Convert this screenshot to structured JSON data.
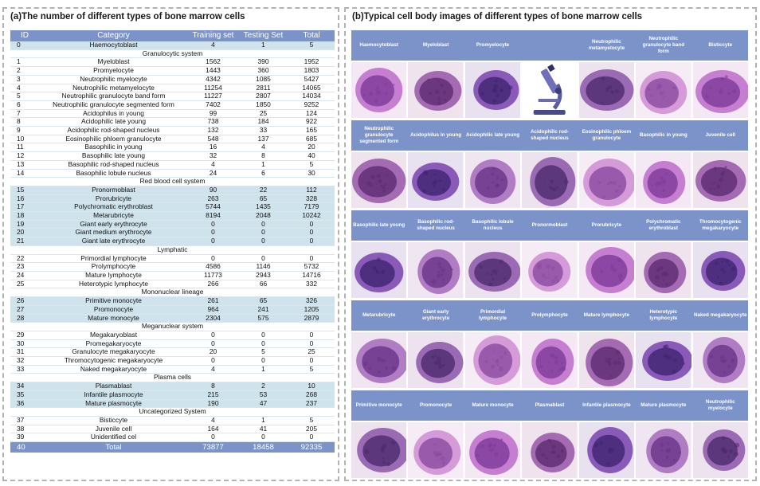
{
  "panel_a": {
    "title": "(a)The number of different types of bone marrow cells",
    "headers": [
      "ID",
      "Category",
      "Training set",
      "Testing Set",
      "Total"
    ],
    "rows": [
      {
        "kind": "row",
        "id": "0",
        "name": "Haemocytoblast",
        "train": "4",
        "test": "1",
        "total": "5",
        "hl": true
      },
      {
        "kind": "section",
        "name": "Granulocytic system"
      },
      {
        "kind": "row",
        "id": "1",
        "name": "Myeloblast",
        "train": "1562",
        "test": "390",
        "total": "1952"
      },
      {
        "kind": "row",
        "id": "2",
        "name": "Promyelocyte",
        "train": "1443",
        "test": "360",
        "total": "1803"
      },
      {
        "kind": "row",
        "id": "3",
        "name": "Neutrophilic myelocyte",
        "train": "4342",
        "test": "1085",
        "total": "5427"
      },
      {
        "kind": "row",
        "id": "4",
        "name": "Neutrophilic metamyelocyte",
        "train": "11254",
        "test": "2811",
        "total": "14065"
      },
      {
        "kind": "row",
        "id": "5",
        "name": "Neutrophilic granulocyte band form",
        "train": "11227",
        "test": "2807",
        "total": "14034"
      },
      {
        "kind": "row",
        "id": "6",
        "name": "Neutrophilic granulocyte segmented form",
        "train": "7402",
        "test": "1850",
        "total": "9252"
      },
      {
        "kind": "row",
        "id": "7",
        "name": "Acidophilus in young",
        "train": "99",
        "test": "25",
        "total": "124"
      },
      {
        "kind": "row",
        "id": "8",
        "name": "Acidophilic late young",
        "train": "738",
        "test": "184",
        "total": "922"
      },
      {
        "kind": "row",
        "id": "9",
        "name": "Acidophilic rod-shaped nucleus",
        "train": "132",
        "test": "33",
        "total": "165"
      },
      {
        "kind": "row",
        "id": "10",
        "name": "Eosinophilic phloem granulocyte",
        "train": "548",
        "test": "137",
        "total": "685"
      },
      {
        "kind": "row",
        "id": "11",
        "name": "Basophilic in young",
        "train": "16",
        "test": "4",
        "total": "20"
      },
      {
        "kind": "row",
        "id": "12",
        "name": "Basophilic late young",
        "train": "32",
        "test": "8",
        "total": "40"
      },
      {
        "kind": "row",
        "id": "13",
        "name": "Basophilic rod-shaped nucleus",
        "train": "4",
        "test": "1",
        "total": "5"
      },
      {
        "kind": "row",
        "id": "14",
        "name": "Basophilic lobule nucleus",
        "train": "24",
        "test": "6",
        "total": "30"
      },
      {
        "kind": "section",
        "name": "Red blood cell system",
        "hl": true
      },
      {
        "kind": "row",
        "id": "15",
        "name": "Pronormoblast",
        "train": "90",
        "test": "22",
        "total": "112",
        "hl": true
      },
      {
        "kind": "row",
        "id": "16",
        "name": "Prorubricyte",
        "train": "263",
        "test": "65",
        "total": "328",
        "hl": true
      },
      {
        "kind": "row",
        "id": "17",
        "name": "Polychromatic erythroblast",
        "train": "5744",
        "test": "1435",
        "total": "7179",
        "hl": true
      },
      {
        "kind": "row",
        "id": "18",
        "name": "Metarubricyte",
        "train": "8194",
        "test": "2048",
        "total": "10242",
        "hl": true
      },
      {
        "kind": "row",
        "id": "19",
        "name": "Giant early erythrocyte",
        "train": "0",
        "test": "0",
        "total": "0",
        "hl": true
      },
      {
        "kind": "row",
        "id": "20",
        "name": "Giant medium erythrocyte",
        "train": "0",
        "test": "0",
        "total": "0",
        "hl": true
      },
      {
        "kind": "row",
        "id": "21",
        "name": "Giant late erythrocyte",
        "train": "0",
        "test": "0",
        "total": "0",
        "hl": true
      },
      {
        "kind": "section",
        "name": "Lymphatic"
      },
      {
        "kind": "row",
        "id": "22",
        "name": "Primordial lymphocyte",
        "train": "0",
        "test": "0",
        "total": "0"
      },
      {
        "kind": "row",
        "id": "23",
        "name": "Prolymphocyte",
        "train": "4586",
        "test": "1146",
        "total": "5732"
      },
      {
        "kind": "row",
        "id": "24",
        "name": "Mature lymphocyte",
        "train": "11773",
        "test": "2943",
        "total": "14716"
      },
      {
        "kind": "row",
        "id": "25",
        "name": "Heterotypic lymphocyte",
        "train": "266",
        "test": "66",
        "total": "332"
      },
      {
        "kind": "section",
        "name": "Mononuclear lineage",
        "hl": true
      },
      {
        "kind": "row",
        "id": "26",
        "name": "Primitive monocyte",
        "train": "261",
        "test": "65",
        "total": "326",
        "hl": true
      },
      {
        "kind": "row",
        "id": "27",
        "name": "Promonocyte",
        "train": "964",
        "test": "241",
        "total": "1205",
        "hl": true
      },
      {
        "kind": "row",
        "id": "28",
        "name": "Mature monocyte",
        "train": "2304",
        "test": "575",
        "total": "2879",
        "hl": true
      },
      {
        "kind": "section",
        "name": "Meganuclear system"
      },
      {
        "kind": "row",
        "id": "29",
        "name": "Megakaryoblast",
        "train": "0",
        "test": "0",
        "total": "0"
      },
      {
        "kind": "row",
        "id": "30",
        "name": "Promegakaryocyte",
        "train": "0",
        "test": "0",
        "total": "0"
      },
      {
        "kind": "row",
        "id": "31",
        "name": "Granulocyte megakaryocyte",
        "train": "20",
        "test": "5",
        "total": "25"
      },
      {
        "kind": "row",
        "id": "32",
        "name": "Thromocytogenic megakaryocyte",
        "train": "0",
        "test": "0",
        "total": "0"
      },
      {
        "kind": "row",
        "id": "33",
        "name": "Naked megakaryocyte",
        "train": "4",
        "test": "1",
        "total": "5"
      },
      {
        "kind": "section",
        "name": "Plasma cells",
        "hl": true
      },
      {
        "kind": "row",
        "id": "34",
        "name": "Plasmablast",
        "train": "8",
        "test": "2",
        "total": "10",
        "hl": true
      },
      {
        "kind": "row",
        "id": "35",
        "name": "Infantile plasmocyte",
        "train": "215",
        "test": "53",
        "total": "268",
        "hl": true
      },
      {
        "kind": "row",
        "id": "36",
        "name": "Mature plasmocyte",
        "train": "190",
        "test": "47",
        "total": "237",
        "hl": true
      },
      {
        "kind": "section",
        "name": "Uncategorized System"
      },
      {
        "kind": "row",
        "id": "37",
        "name": "Bisticcyte",
        "train": "4",
        "test": "1",
        "total": "5"
      },
      {
        "kind": "row",
        "id": "38",
        "name": "Juvenile cell",
        "train": "164",
        "test": "41",
        "total": "205"
      },
      {
        "kind": "row",
        "id": "39",
        "name": "Unidentified cel",
        "train": "0",
        "test": "0",
        "total": "0"
      }
    ],
    "footer": {
      "id": "40",
      "name": "Total",
      "train": "73877",
      "test": "18458",
      "total": "92335"
    }
  },
  "panel_b": {
    "title": "(b)Typical cell body images of different types of bone marrow cells",
    "rows": [
      [
        "Haemocytoblast",
        "Myeloblast",
        "Promyelocyte",
        "",
        "Neutrophilic metamyelocyte",
        "Neutrophilic granulocyte band form",
        "Bisticcyte"
      ],
      [
        "Neutrophilic granulocyte segmented form",
        "Acidophilus in young",
        "Acidophilic late young",
        "Acidophilic rod-shaped nucleus",
        "Eosinophilic phloem granulocyte",
        "Basophilic in young",
        "Juvenile cell"
      ],
      [
        "Basophilic late young",
        "Basophilic rod-shaped nucleus",
        "Basophilic lobule nucleus",
        "Pronormoblast",
        "Prorubricyte",
        "Polychromatic erythroblast",
        "Thromocytogenic megakaryocyte"
      ],
      [
        "Metarubricyte",
        "Giant early erythrocyte",
        "Primordial lymphocyte",
        "Prolymphocyte",
        "Mature lymphocyte",
        "Heterotypic lymphocyte",
        "Naked megakaryocyte"
      ],
      [
        "Primitive monocyte",
        "Promonocyte",
        "Mature monocyte",
        "Plasmablast",
        "Infantile plasmocyte",
        "Mature plasmocyte",
        "Neutrophilic myelocyte"
      ]
    ],
    "colors": {
      "header_blue": "#7b93c9",
      "highlight": "#cfe3ec",
      "stain_purple": "#6a2b86"
    }
  }
}
